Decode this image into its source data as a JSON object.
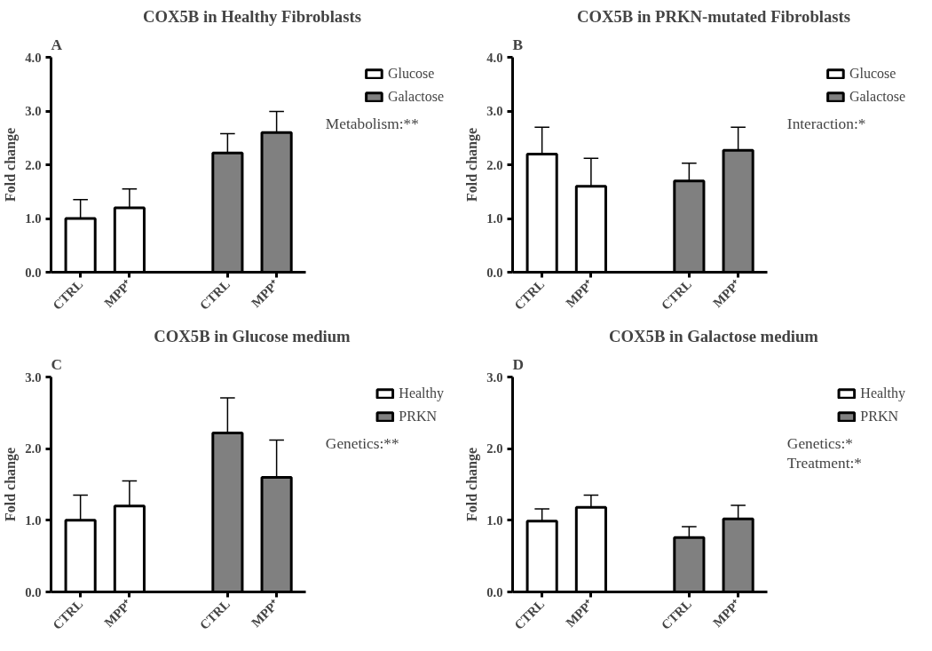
{
  "chart_data": [
    {
      "type": "bar",
      "title": "COX5B in Healthy Fibroblasts",
      "ylabel": "Fold change",
      "categories": [
        "CTRL",
        "MPP⁺",
        null,
        "CTRL",
        "MPP⁺"
      ],
      "series": [
        {
          "name": "Glucose",
          "color": "#ffffff",
          "values": [
            1.0,
            1.2,
            null,
            null,
            null
          ],
          "errors": [
            [
              1.0,
              1.35
            ],
            [
              1.2,
              1.55
            ],
            null,
            null,
            null
          ]
        },
        {
          "name": "Galactose",
          "color": "#808080",
          "values": [
            null,
            null,
            null,
            2.22,
            2.6
          ],
          "errors": [
            null,
            null,
            null,
            [
              2.22,
              2.58
            ],
            [
              2.6,
              2.99
            ]
          ]
        }
      ],
      "ylim": [
        0,
        4
      ],
      "yticks": [
        {
          "value": 0,
          "label": "0.0"
        },
        {
          "value": 1,
          "label": "1.0"
        },
        {
          "value": 2,
          "label": "2.0"
        },
        {
          "value": 3,
          "label": "3.0"
        },
        {
          "value": 4,
          "label": "4.0"
        }
      ],
      "legend": "right",
      "stacked": true,
      "annotations": [
        "A",
        "Metabolism:**"
      ]
    },
    {
      "type": "bar",
      "title": "COX5B in PRKN-mutated Fibroblasts",
      "ylabel": "Fold change",
      "categories": [
        "CTRL",
        "MPP⁺",
        null,
        "CTRL",
        "MPP⁺"
      ],
      "series": [
        {
          "name": "Glucose",
          "color": "#ffffff",
          "values": [
            2.2,
            1.6,
            null,
            null,
            null
          ],
          "errors": [
            [
              2.2,
              2.7
            ],
            [
              1.6,
              2.12
            ],
            null,
            null,
            null
          ]
        },
        {
          "name": "Galactose",
          "color": "#808080",
          "values": [
            null,
            null,
            null,
            1.7,
            2.27
          ],
          "errors": [
            null,
            null,
            null,
            [
              1.7,
              2.03
            ],
            [
              2.27,
              2.7
            ]
          ]
        }
      ],
      "ylim": [
        0,
        4
      ],
      "yticks": [
        {
          "value": 0,
          "label": "0.0"
        },
        {
          "value": 1,
          "label": "1.0"
        },
        {
          "value": 2,
          "label": "2.0"
        },
        {
          "value": 3,
          "label": "3.0"
        },
        {
          "value": 4,
          "label": "4.0"
        }
      ],
      "legend": "right",
      "stacked": true,
      "annotations": [
        "B",
        "Interaction:*"
      ]
    },
    {
      "type": "bar",
      "title": "COX5B in Glucose medium",
      "ylabel": "Fold change",
      "categories": [
        "CTRL",
        "MPP⁺",
        null,
        "CTRL",
        "MPP⁺"
      ],
      "series": [
        {
          "name": "Healthy",
          "color": "#ffffff",
          "values": [
            1.0,
            1.2,
            null,
            null,
            null
          ],
          "errors": [
            [
              1.0,
              1.35
            ],
            [
              1.2,
              1.55
            ],
            null,
            null,
            null
          ]
        },
        {
          "name": "PRKN",
          "color": "#808080",
          "values": [
            null,
            null,
            null,
            2.22,
            1.6
          ],
          "errors": [
            null,
            null,
            null,
            [
              2.22,
              2.71
            ],
            [
              1.6,
              2.12
            ]
          ]
        }
      ],
      "ylim": [
        0,
        3
      ],
      "yticks": [
        {
          "value": 0,
          "label": "0.0"
        },
        {
          "value": 1,
          "label": "1.0"
        },
        {
          "value": 2,
          "label": "2.0"
        },
        {
          "value": 3,
          "label": "3.0"
        }
      ],
      "legend": "right",
      "stacked": true,
      "annotations": [
        "C",
        "Genetics:**"
      ]
    },
    {
      "type": "bar",
      "title": "COX5B in Galactose medium",
      "ylabel": "Fold change",
      "categories": [
        "CTRL",
        "MPP⁺",
        null,
        "CTRL",
        "MPP⁺"
      ],
      "series": [
        {
          "name": "Healthy",
          "color": "#ffffff",
          "values": [
            0.99,
            1.18,
            null,
            null,
            null
          ],
          "errors": [
            [
              0.99,
              1.16
            ],
            [
              1.18,
              1.35
            ],
            null,
            null,
            null
          ]
        },
        {
          "name": "PRKN",
          "color": "#808080",
          "values": [
            null,
            null,
            null,
            0.76,
            1.02
          ],
          "errors": [
            null,
            null,
            null,
            [
              0.76,
              0.91
            ],
            [
              1.02,
              1.21
            ]
          ]
        }
      ],
      "ylim": [
        0,
        3
      ],
      "yticks": [
        {
          "value": 0,
          "label": "0.0"
        },
        {
          "value": 1,
          "label": "1.0"
        },
        {
          "value": 2,
          "label": "2.0"
        },
        {
          "value": 3,
          "label": "3.0"
        }
      ],
      "legend": "right",
      "stacked": true,
      "annotations": [
        "D",
        "Genetics:*",
        "Treatment:*"
      ]
    }
  ]
}
